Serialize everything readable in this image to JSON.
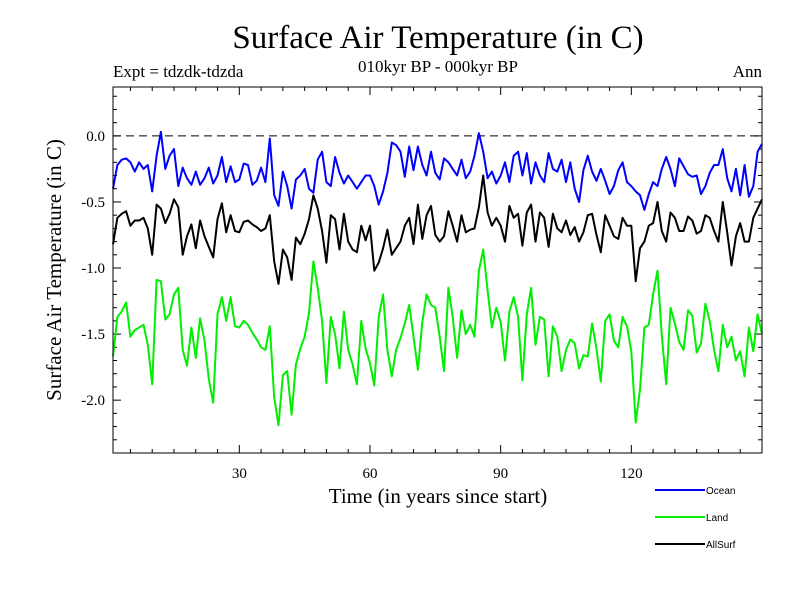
{
  "chart_data": {
    "type": "line",
    "title": "Surface Air Temperature (in C)",
    "subtitle": "010kyr BP - 000kyr BP",
    "experiment": "Expt = tdzdk-tdzda",
    "season": "Ann",
    "xlabel": "Time (in years since start)",
    "ylabel": "Surface Air Temperature (in C)",
    "xlim": [
      1,
      150
    ],
    "ylim": [
      -2.4,
      0.37
    ],
    "xticks": [
      30,
      60,
      90,
      120
    ],
    "yticks": [
      0.0,
      -0.5,
      -1.0,
      -1.5,
      -2.0
    ],
    "ytick_labels": [
      "0.0",
      "-0.5",
      "-1.0",
      "-1.5",
      "-2.0"
    ],
    "reference_line": 0.0,
    "x": [
      1,
      2,
      3,
      4,
      5,
      6,
      7,
      8,
      9,
      10,
      11,
      12,
      13,
      14,
      15,
      16,
      17,
      18,
      19,
      20,
      21,
      22,
      23,
      24,
      25,
      26,
      27,
      28,
      29,
      30,
      31,
      32,
      33,
      34,
      35,
      36,
      37,
      38,
      39,
      40,
      41,
      42,
      43,
      44,
      45,
      46,
      47,
      48,
      49,
      50,
      51,
      52,
      53,
      54,
      55,
      56,
      57,
      58,
      59,
      60,
      61,
      62,
      63,
      64,
      65,
      66,
      67,
      68,
      69,
      70,
      71,
      72,
      73,
      74,
      75,
      76,
      77,
      78,
      79,
      80,
      81,
      82,
      83,
      84,
      85,
      86,
      87,
      88,
      89,
      90,
      91,
      92,
      93,
      94,
      95,
      96,
      97,
      98,
      99,
      100,
      101,
      102,
      103,
      104,
      105,
      106,
      107,
      108,
      109,
      110,
      111,
      112,
      113,
      114,
      115,
      116,
      117,
      118,
      119,
      120,
      121,
      122,
      123,
      124,
      125,
      126,
      127,
      128,
      129,
      130,
      131,
      132,
      133,
      134,
      135,
      136,
      137,
      138,
      139,
      140,
      141,
      142,
      143,
      144,
      145,
      146,
      147,
      148,
      149,
      150
    ],
    "series": [
      {
        "name": "Ocean",
        "color": "#0000ff",
        "values": [
          -0.4,
          -0.22,
          -0.18,
          -0.17,
          -0.2,
          -0.27,
          -0.2,
          -0.25,
          -0.22,
          -0.42,
          -0.15,
          0.03,
          -0.25,
          -0.15,
          -0.1,
          -0.38,
          -0.24,
          -0.32,
          -0.37,
          -0.27,
          -0.37,
          -0.32,
          -0.24,
          -0.36,
          -0.3,
          -0.16,
          -0.35,
          -0.23,
          -0.35,
          -0.33,
          -0.21,
          -0.22,
          -0.37,
          -0.34,
          -0.24,
          -0.35,
          -0.02,
          -0.45,
          -0.53,
          -0.27,
          -0.38,
          -0.55,
          -0.33,
          -0.3,
          -0.25,
          -0.4,
          -0.43,
          -0.18,
          -0.12,
          -0.35,
          -0.38,
          -0.16,
          -0.28,
          -0.36,
          -0.3,
          -0.35,
          -0.4,
          -0.35,
          -0.3,
          -0.3,
          -0.38,
          -0.52,
          -0.42,
          -0.28,
          -0.05,
          -0.07,
          -0.12,
          -0.31,
          -0.08,
          -0.26,
          -0.08,
          -0.22,
          -0.3,
          -0.12,
          -0.28,
          -0.33,
          -0.17,
          -0.2,
          -0.25,
          -0.3,
          -0.18,
          -0.32,
          -0.27,
          -0.15,
          0.02,
          -0.12,
          -0.32,
          -0.27,
          -0.36,
          -0.3,
          -0.2,
          -0.35,
          -0.15,
          -0.12,
          -0.3,
          -0.13,
          -0.36,
          -0.2,
          -0.3,
          -0.35,
          -0.13,
          -0.25,
          -0.27,
          -0.18,
          -0.35,
          -0.2,
          -0.4,
          -0.5,
          -0.26,
          -0.15,
          -0.27,
          -0.34,
          -0.25,
          -0.34,
          -0.44,
          -0.38,
          -0.26,
          -0.2,
          -0.35,
          -0.38,
          -0.42,
          -0.45,
          -0.56,
          -0.44,
          -0.35,
          -0.38,
          -0.25,
          -0.16,
          -0.25,
          -0.38,
          -0.17,
          -0.23,
          -0.29,
          -0.31,
          -0.3,
          -0.44,
          -0.38,
          -0.28,
          -0.22,
          -0.22,
          -0.1,
          -0.32,
          -0.42,
          -0.25,
          -0.45,
          -0.22,
          -0.46,
          -0.38,
          -0.12,
          -0.06
        ]
      },
      {
        "name": "Land",
        "color": "#00ee00",
        "values": [
          -1.67,
          -1.37,
          -1.33,
          -1.26,
          -1.52,
          -1.47,
          -1.45,
          -1.43,
          -1.58,
          -1.88,
          -1.09,
          -1.1,
          -1.39,
          -1.35,
          -1.2,
          -1.15,
          -1.62,
          -1.74,
          -1.45,
          -1.68,
          -1.38,
          -1.55,
          -1.84,
          -2.02,
          -1.35,
          -1.22,
          -1.4,
          -1.22,
          -1.44,
          -1.45,
          -1.4,
          -1.43,
          -1.49,
          -1.54,
          -1.6,
          -1.62,
          -1.44,
          -1.98,
          -2.19,
          -1.81,
          -1.78,
          -2.11,
          -1.73,
          -1.61,
          -1.52,
          -1.34,
          -0.95,
          -1.15,
          -1.4,
          -1.87,
          -1.37,
          -1.5,
          -1.76,
          -1.33,
          -1.62,
          -1.73,
          -1.88,
          -1.4,
          -1.61,
          -1.72,
          -1.89,
          -1.37,
          -1.2,
          -1.62,
          -1.82,
          -1.62,
          -1.53,
          -1.42,
          -1.28,
          -1.52,
          -1.77,
          -1.41,
          -1.2,
          -1.28,
          -1.3,
          -1.52,
          -1.78,
          -1.15,
          -1.37,
          -1.68,
          -1.32,
          -1.5,
          -1.43,
          -1.52,
          -1.02,
          -0.86,
          -1.17,
          -1.45,
          -1.3,
          -1.41,
          -1.7,
          -1.33,
          -1.22,
          -1.37,
          -1.85,
          -1.35,
          -1.15,
          -1.58,
          -1.37,
          -1.39,
          -1.82,
          -1.44,
          -1.52,
          -1.78,
          -1.62,
          -1.54,
          -1.57,
          -1.76,
          -1.66,
          -1.67,
          -1.42,
          -1.61,
          -1.86,
          -1.4,
          -1.35,
          -1.55,
          -1.6,
          -1.37,
          -1.44,
          -1.63,
          -2.17,
          -1.92,
          -1.45,
          -1.43,
          -1.2,
          -1.02,
          -1.51,
          -1.88,
          -1.3,
          -1.42,
          -1.56,
          -1.62,
          -1.32,
          -1.36,
          -1.64,
          -1.57,
          -1.27,
          -1.4,
          -1.62,
          -1.78,
          -1.43,
          -1.6,
          -1.52,
          -1.7,
          -1.63,
          -1.82,
          -1.45,
          -1.63,
          -1.35,
          -1.5
        ]
      },
      {
        "name": "AllSurf",
        "color": "#000000",
        "values": [
          -0.82,
          -0.62,
          -0.59,
          -0.57,
          -0.68,
          -0.64,
          -0.64,
          -0.62,
          -0.7,
          -0.9,
          -0.52,
          -0.55,
          -0.66,
          -0.59,
          -0.48,
          -0.54,
          -0.9,
          -0.76,
          -0.67,
          -0.85,
          -0.64,
          -0.76,
          -0.84,
          -0.92,
          -0.63,
          -0.51,
          -0.73,
          -0.6,
          -0.72,
          -0.73,
          -0.65,
          -0.64,
          -0.67,
          -0.69,
          -0.72,
          -0.7,
          -0.6,
          -0.95,
          -1.12,
          -0.86,
          -0.92,
          -1.09,
          -0.77,
          -0.82,
          -0.74,
          -0.63,
          -0.45,
          -0.55,
          -0.72,
          -0.96,
          -0.6,
          -0.63,
          -0.86,
          -0.59,
          -0.8,
          -0.86,
          -0.88,
          -0.68,
          -0.79,
          -0.68,
          -1.02,
          -0.96,
          -0.85,
          -0.71,
          -0.9,
          -0.85,
          -0.8,
          -0.68,
          -0.62,
          -0.82,
          -0.52,
          -0.78,
          -0.6,
          -0.53,
          -0.75,
          -0.8,
          -0.76,
          -0.57,
          -0.68,
          -0.8,
          -0.6,
          -0.73,
          -0.71,
          -0.7,
          -0.54,
          -0.3,
          -0.58,
          -0.68,
          -0.62,
          -0.68,
          -0.8,
          -0.53,
          -0.62,
          -0.59,
          -0.83,
          -0.58,
          -0.52,
          -0.8,
          -0.58,
          -0.62,
          -0.84,
          -0.59,
          -0.7,
          -0.73,
          -0.64,
          -0.75,
          -0.69,
          -0.8,
          -0.73,
          -0.6,
          -0.59,
          -0.75,
          -0.88,
          -0.6,
          -0.68,
          -0.76,
          -0.78,
          -0.62,
          -0.68,
          -0.68,
          -1.1,
          -0.85,
          -0.8,
          -0.68,
          -0.66,
          -0.5,
          -0.72,
          -0.8,
          -0.58,
          -0.62,
          -0.72,
          -0.72,
          -0.61,
          -0.64,
          -0.74,
          -0.72,
          -0.6,
          -0.62,
          -0.72,
          -0.8,
          -0.5,
          -0.73,
          -0.98,
          -0.76,
          -0.66,
          -0.8,
          -0.8,
          -0.62,
          -0.55,
          -0.48
        ]
      }
    ]
  }
}
